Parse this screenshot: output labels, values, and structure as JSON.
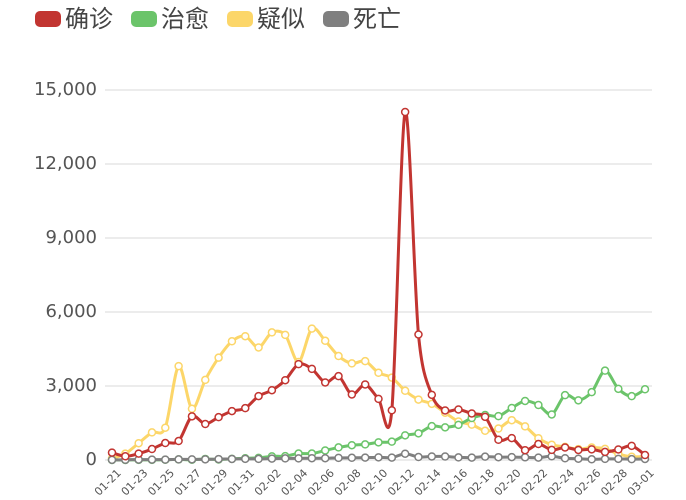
{
  "chart_data": {
    "type": "line",
    "categories": [
      "01-21",
      null,
      "01-23",
      null,
      "01-25",
      null,
      "01-27",
      null,
      "01-29",
      null,
      "01-31",
      null,
      "02-02",
      null,
      "02-04",
      null,
      "02-06",
      null,
      "02-08",
      null,
      "02-10",
      null,
      "02-12",
      null,
      "02-14",
      null,
      "02-16",
      null,
      "02-18",
      null,
      "02-20",
      null,
      "02-22",
      null,
      "02-24",
      null,
      "02-26",
      null,
      "02-28",
      null,
      "03-01"
    ],
    "series": [
      {
        "name": "确诊",
        "color": "#c23531",
        "values": [
          300,
          150,
          260,
          444,
          688,
          769,
          1771,
          1459,
          1737,
          1982,
          2102,
          2590,
          2829,
          3235,
          3887,
          3694,
          3143,
          3399,
          2656,
          3062,
          2478,
          2015,
          14108,
          5090,
          2641,
          2008,
          2048,
          1886,
          1749,
          820,
          889,
          397,
          648,
          409,
          508,
          406,
          433,
          327,
          427,
          573,
          202
        ]
      },
      {
        "name": "治愈",
        "color": "#6bc46a",
        "values": [
          0,
          0,
          6,
          3,
          11,
          23,
          9,
          43,
          21,
          47,
          72,
          85,
          147,
          157,
          262,
          261,
          387,
          510,
          600,
          632,
          716,
          744,
          1000,
          1081,
          1373,
          1323,
          1425,
          1701,
          1824,
          1779,
          2109,
          2394,
          2230,
          1846,
          2628,
          2419,
          2750,
          3622,
          2884,
          2589,
          2867
        ]
      },
      {
        "name": "疑似",
        "color": "#fcd669",
        "values": [
          60,
          257,
          680,
          1118,
          1309,
          3806,
          2077,
          3248,
          4148,
          4812,
          5019,
          4562,
          5173,
          5072,
          3971,
          5328,
          4833,
          4214,
          3916,
          4008,
          3536,
          3342,
          2807,
          2450,
          2277,
          1918,
          1563,
          1432,
          1185,
          1277,
          1614,
          1361,
          882,
          620,
          530,
          439,
          508,
          452,
          248,
          132,
          141
        ]
      },
      {
        "name": "死亡",
        "color": "#7f7f7f",
        "values": [
          6,
          9,
          17,
          16,
          15,
          24,
          26,
          26,
          38,
          43,
          46,
          45,
          57,
          64,
          65,
          73,
          73,
          86,
          89,
          97,
          108,
          97,
          254,
          121,
          143,
          142,
          105,
          98,
          136,
          114,
          118,
          109,
          97,
          150,
          71,
          52,
          29,
          44,
          47,
          35,
          42
        ]
      }
    ],
    "ylim": [
      0,
      15000
    ],
    "yticks": [
      0,
      {
        "value": 3000,
        "label": "3,000"
      },
      {
        "value": 6000,
        "label": "6,000"
      },
      {
        "value": 9000,
        "label": "9,000"
      },
      {
        "value": 12000,
        "label": "12,000"
      },
      {
        "value": 15000,
        "label": "15,000"
      }
    ],
    "grid": true
  }
}
